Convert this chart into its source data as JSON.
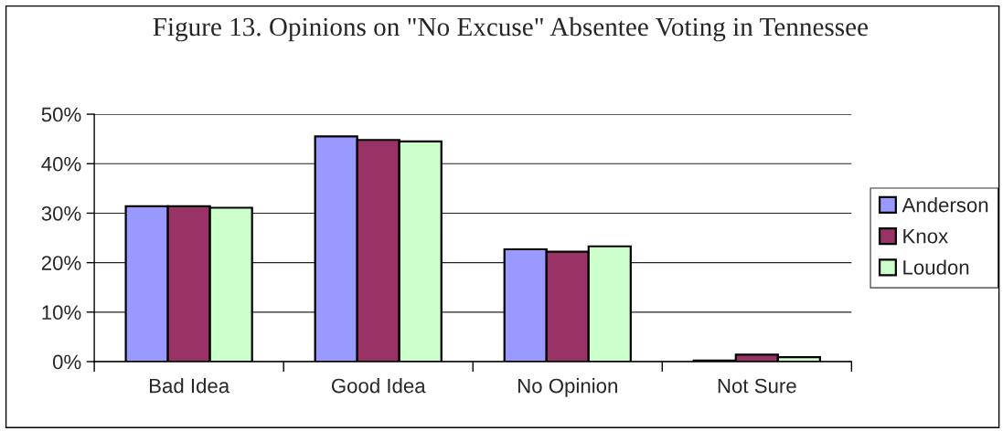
{
  "chart_data": {
    "type": "bar",
    "title": "Figure 13. Opinions on \"No Excuse\" Absentee Voting in Tennessee",
    "categories": [
      "Bad Idea",
      "Good Idea",
      "No Opinion",
      "Not Sure"
    ],
    "series": [
      {
        "name": "Anderson",
        "color": "#9999ff",
        "values": [
          31.4,
          45.5,
          22.7,
          0.2
        ]
      },
      {
        "name": "Knox",
        "color": "#993366",
        "values": [
          31.4,
          44.8,
          22.2,
          1.4
        ]
      },
      {
        "name": "Loudon",
        "color": "#ccffcc",
        "values": [
          31.1,
          44.5,
          23.3,
          0.9
        ]
      }
    ],
    "ylim": [
      0,
      50
    ],
    "yticks": [
      {
        "value": 0,
        "label": "0%"
      },
      {
        "value": 10,
        "label": "10%"
      },
      {
        "value": 20,
        "label": "20%"
      },
      {
        "value": 30,
        "label": "30%"
      },
      {
        "value": 40,
        "label": "40%"
      },
      {
        "value": 50,
        "label": "50%"
      }
    ],
    "grid": "y",
    "legend": "right"
  }
}
